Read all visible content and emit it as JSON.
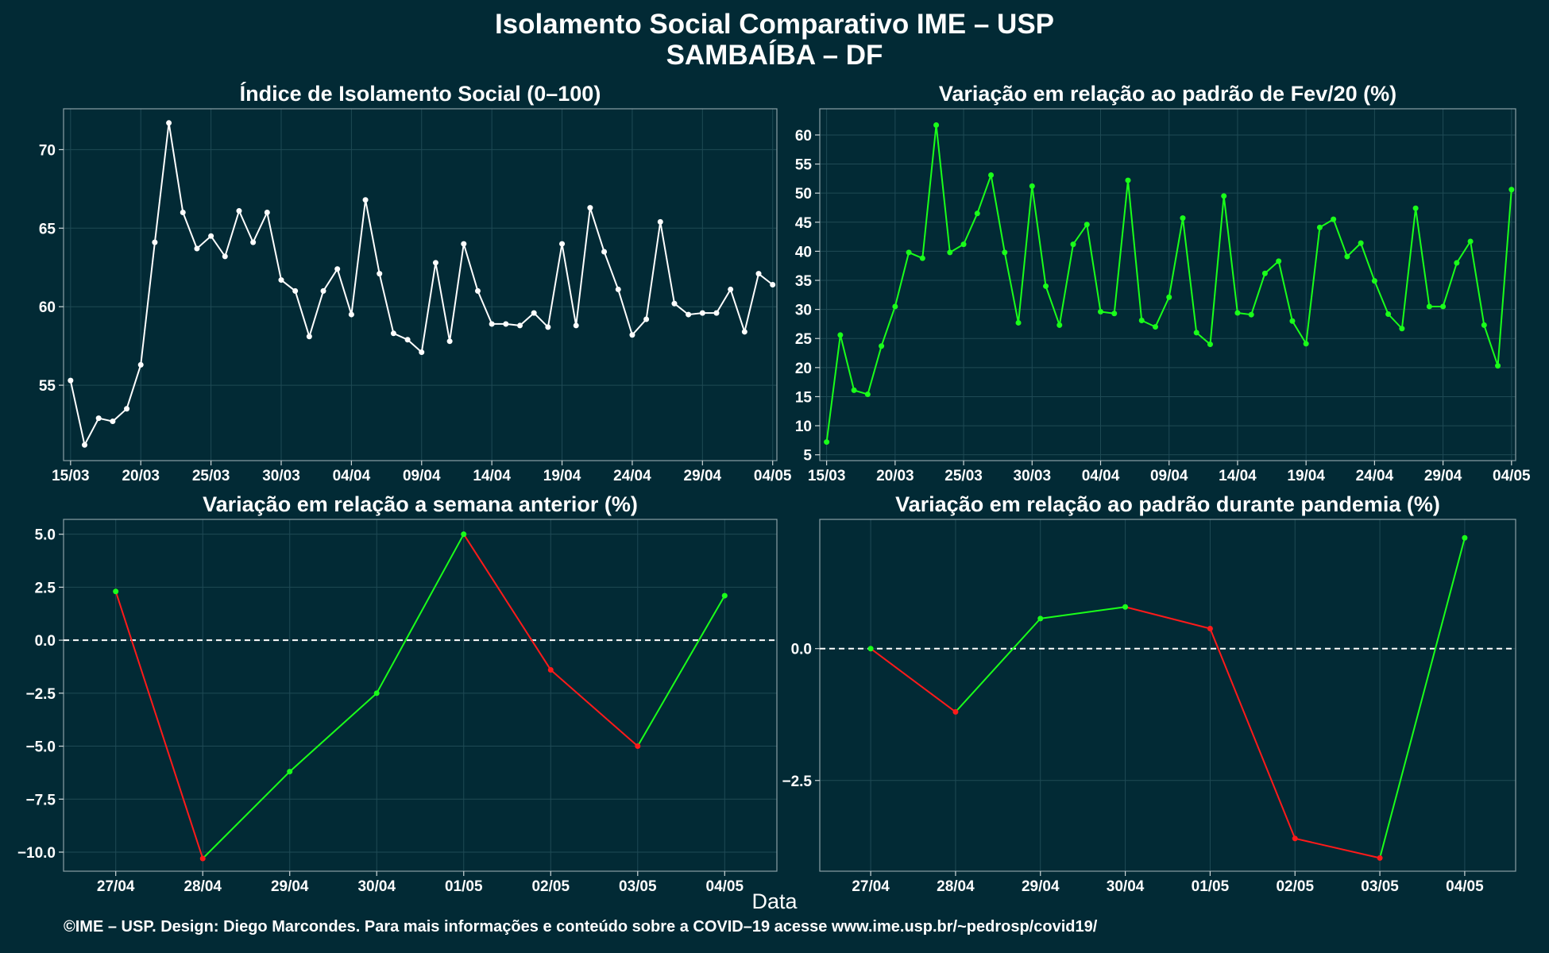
{
  "title": "Isolamento Social Comparativo IME – USP",
  "subtitle": "SAMBAÍBA – DF",
  "xlabel": "Data",
  "footer": "©IME – USP. Design: Diego Marcondes. Para mais informações e conteúdo sobre a COVID–19 acesse www.ime.usp.br/~pedrosp/covid19/",
  "colors": {
    "background": "#022a35",
    "white": "#ffffff",
    "green": "#1aff1a",
    "red": "#ff1a1a",
    "grid": "#1f4a55"
  },
  "chart_data": [
    {
      "id": "p1",
      "type": "line",
      "title": "Índice de Isolamento Social (0–100)",
      "color": "white",
      "x_start": "2020-03-15",
      "xticks": [
        "15/03",
        "20/03",
        "25/03",
        "30/03",
        "04/04",
        "09/04",
        "14/04",
        "19/04",
        "24/04",
        "29/04",
        "04/05"
      ],
      "xlim": [
        -0.5,
        50.3
      ],
      "ylim": [
        50.2,
        72.6
      ],
      "yticks": [
        55,
        60,
        65,
        70
      ],
      "values": [
        55.3,
        51.2,
        52.9,
        52.7,
        53.5,
        56.3,
        64.1,
        71.7,
        66.0,
        63.7,
        64.5,
        63.2,
        66.1,
        64.1,
        66.0,
        61.7,
        61.0,
        58.1,
        61.0,
        62.4,
        59.5,
        66.8,
        62.1,
        58.3,
        57.9,
        57.1,
        62.8,
        57.8,
        64.0,
        61.0,
        58.9,
        58.9,
        58.8,
        59.6,
        58.7,
        64.0,
        58.8,
        66.3,
        63.5,
        61.1,
        58.2,
        59.2,
        65.4,
        60.2,
        59.5,
        59.6,
        59.6,
        61.1,
        58.4,
        62.1,
        61.4
      ]
    },
    {
      "id": "p2",
      "type": "line",
      "title": "Variação em relação ao padrão de Fev/20 (%)",
      "color": "green",
      "x_start": "2020-03-15",
      "xticks": [
        "15/03",
        "20/03",
        "25/03",
        "30/03",
        "04/04",
        "09/04",
        "14/04",
        "19/04",
        "24/04",
        "29/04",
        "04/05"
      ],
      "xlim": [
        -0.5,
        50.3
      ],
      "ylim": [
        4.0,
        64.5
      ],
      "yticks": [
        5,
        10,
        15,
        20,
        25,
        30,
        35,
        40,
        45,
        50,
        55,
        60
      ],
      "values": [
        7.2,
        25.6,
        16.1,
        15.4,
        23.7,
        30.5,
        39.8,
        38.8,
        61.7,
        39.8,
        41.2,
        46.5,
        53.1,
        39.8,
        27.7,
        51.2,
        34.0,
        27.3,
        41.2,
        44.6,
        29.6,
        29.3,
        52.2,
        28.1,
        27.0,
        32.1,
        45.7,
        26.0,
        24.0,
        49.5,
        29.4,
        29.1,
        36.2,
        38.3,
        28.0,
        24.1,
        44.1,
        45.5,
        39.1,
        41.4,
        34.9,
        29.2,
        26.7,
        47.4,
        30.5,
        30.5,
        38.0,
        41.7,
        27.3,
        20.3,
        50.6
      ]
    },
    {
      "id": "p3",
      "type": "line",
      "title": "Variação em relação a semana anterior (%)",
      "colored_by_change": true,
      "reference_line": 0,
      "categories": [
        "27/04",
        "28/04",
        "29/04",
        "30/04",
        "01/05",
        "02/05",
        "03/05",
        "04/05"
      ],
      "xlim": [
        -0.6,
        7.6
      ],
      "ylim": [
        -10.9,
        5.7
      ],
      "yticks": [
        5.0,
        2.5,
        0.0,
        -2.5,
        -5.0,
        -7.5,
        -10.0
      ],
      "ytick_labels": [
        "5.0",
        "2.5",
        "0.0",
        "−2.5",
        "−5.0",
        "−7.5",
        "−10.0"
      ],
      "values": [
        2.3,
        -10.3,
        -6.2,
        -2.5,
        5.0,
        -1.4,
        -5.0,
        2.1
      ]
    },
    {
      "id": "p4",
      "type": "line",
      "title": "Variação em relação ao padrão durante pandemia (%)",
      "colored_by_change": true,
      "reference_line": 0,
      "categories": [
        "27/04",
        "28/04",
        "29/04",
        "30/04",
        "01/05",
        "02/05",
        "03/05",
        "04/05"
      ],
      "xlim": [
        -0.6,
        7.6
      ],
      "ylim": [
        -4.22,
        2.45
      ],
      "yticks": [
        0.0,
        -2.5
      ],
      "ytick_labels": [
        "0.0",
        "−2.5"
      ],
      "values": [
        0.0,
        -1.2,
        0.57,
        0.79,
        0.38,
        -3.6,
        -3.97,
        2.1
      ]
    }
  ]
}
